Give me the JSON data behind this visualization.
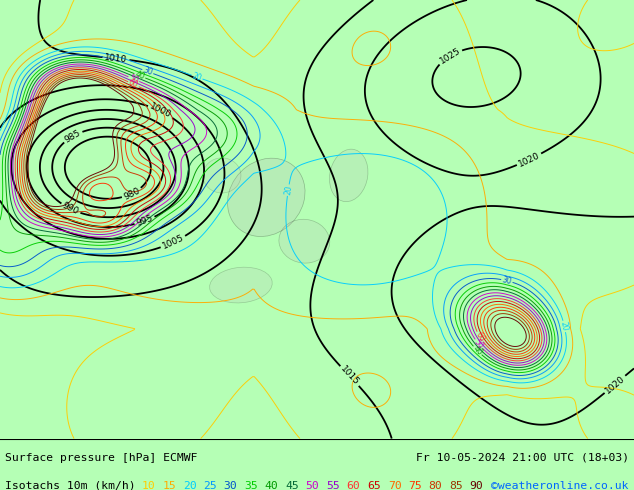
{
  "bg_color": "#b5ffb5",
  "fig_width": 6.34,
  "fig_height": 4.9,
  "dpi": 100,
  "title_line1_left": "Surface pressure [hPa] ECMWF",
  "title_line1_right": "Fr 10-05-2024 21:00 UTC (18+03)",
  "title_line2_left": "Isotachs 10m (km/h)",
  "title_line2_right": "©weatheronline.co.uk",
  "isotach_values": [
    10,
    15,
    20,
    25,
    30,
    35,
    40,
    45,
    50,
    55,
    60,
    65,
    70,
    75,
    80,
    85,
    90
  ],
  "isotach_colors": [
    "#ffcc00",
    "#ffaa00",
    "#00ccff",
    "#0099ff",
    "#0055cc",
    "#00cc00",
    "#009900",
    "#006633",
    "#cc00cc",
    "#9900cc",
    "#ff3333",
    "#cc0000",
    "#ff6600",
    "#ff3300",
    "#cc3300",
    "#993300",
    "#660000"
  ],
  "copyright_color": "#0066ff",
  "separator_color": "#000000",
  "land_color": "#ccffcc",
  "sea_color": "#aaddff",
  "gray_color": "#bbbbbb"
}
